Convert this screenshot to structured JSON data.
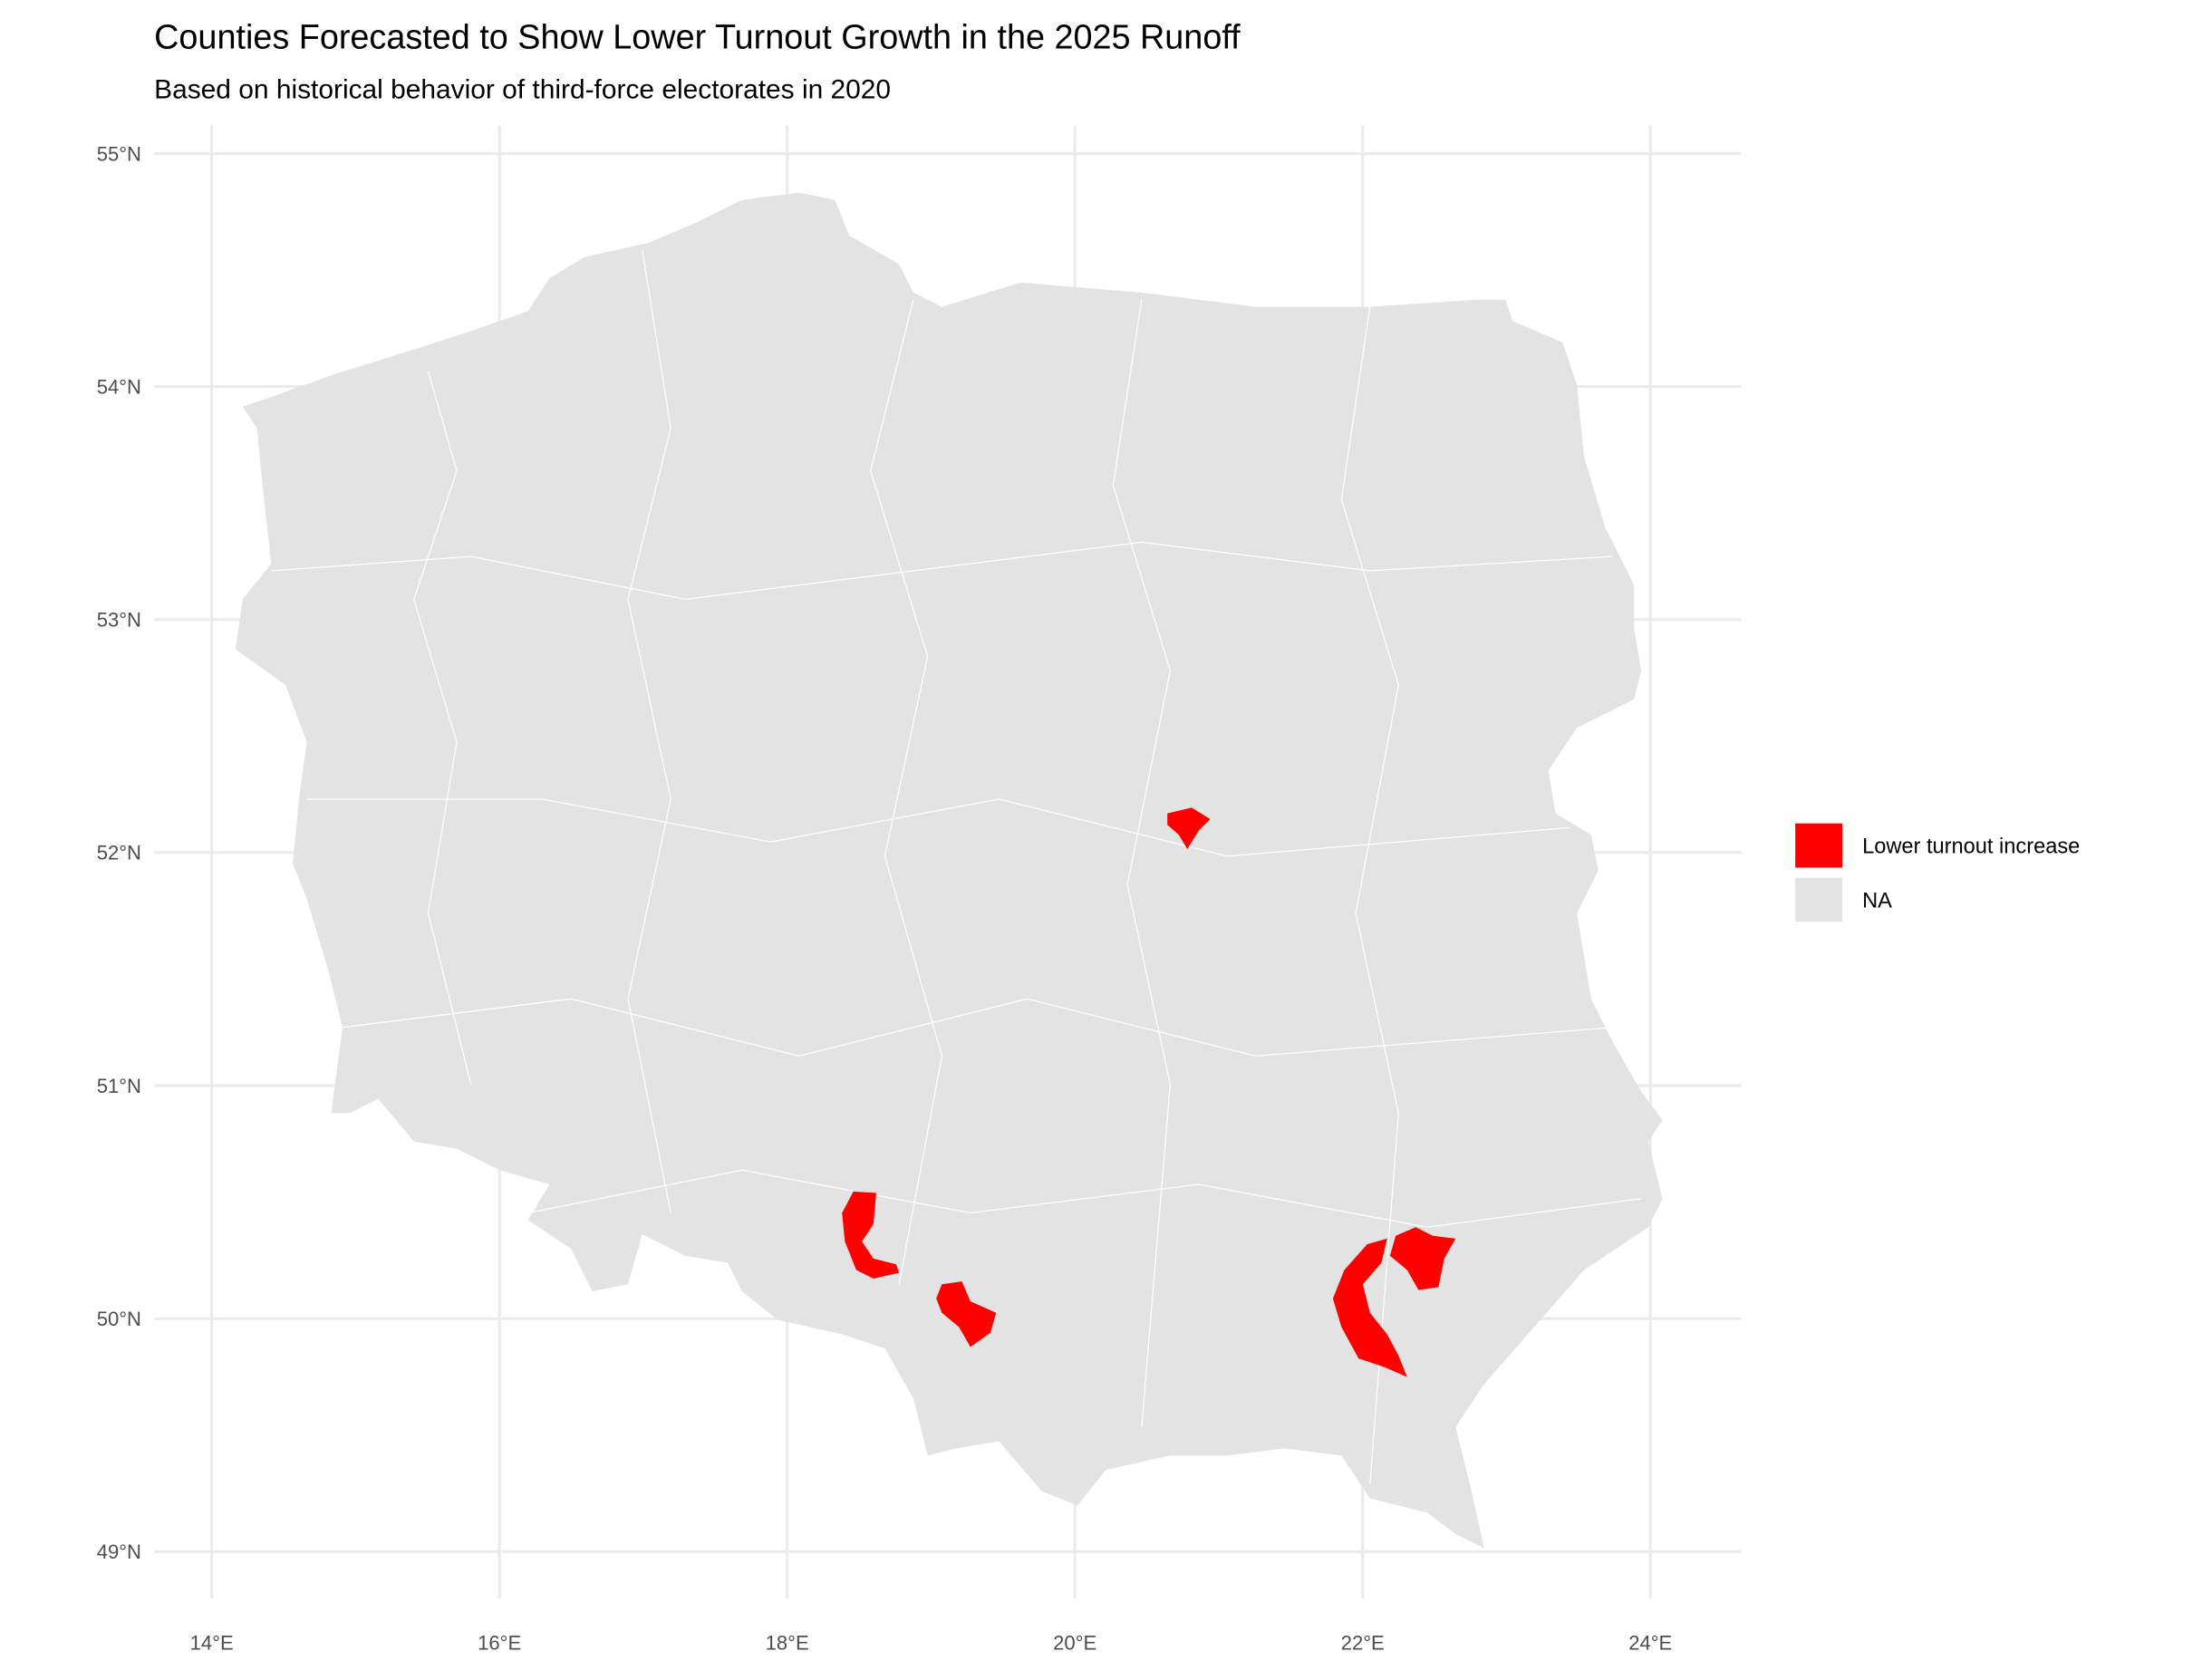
{
  "chart_data": {
    "type": "map",
    "title": "Counties Forecasted to Show Lower Turnout Growth in the 2025 Runoff",
    "subtitle": "Based on historical behavior of third-force electorates in 2020",
    "xlim": [
      13.6,
      24.63
    ],
    "ylim": [
      48.8,
      55.12
    ],
    "xticks": [
      {
        "value": 14,
        "label": "14°E"
      },
      {
        "value": 16,
        "label": "16°E"
      },
      {
        "value": 18,
        "label": "18°E"
      },
      {
        "value": 20,
        "label": "20°E"
      },
      {
        "value": 22,
        "label": "22°E"
      },
      {
        "value": 24,
        "label": "24°E"
      }
    ],
    "yticks": [
      {
        "value": 49,
        "label": "49°N"
      },
      {
        "value": 50,
        "label": "50°N"
      },
      {
        "value": 51,
        "label": "51°N"
      },
      {
        "value": 52,
        "label": "52°N"
      },
      {
        "value": 53,
        "label": "53°N"
      },
      {
        "value": 54,
        "label": "54°N"
      },
      {
        "value": 55,
        "label": "55°N"
      }
    ],
    "grid": true,
    "legend": {
      "position": "right",
      "entries": [
        {
          "name": "Lower turnout increase",
          "color": "#ff0000"
        },
        {
          "name": "NA",
          "color": "#e3e3e3"
        }
      ]
    }
  }
}
